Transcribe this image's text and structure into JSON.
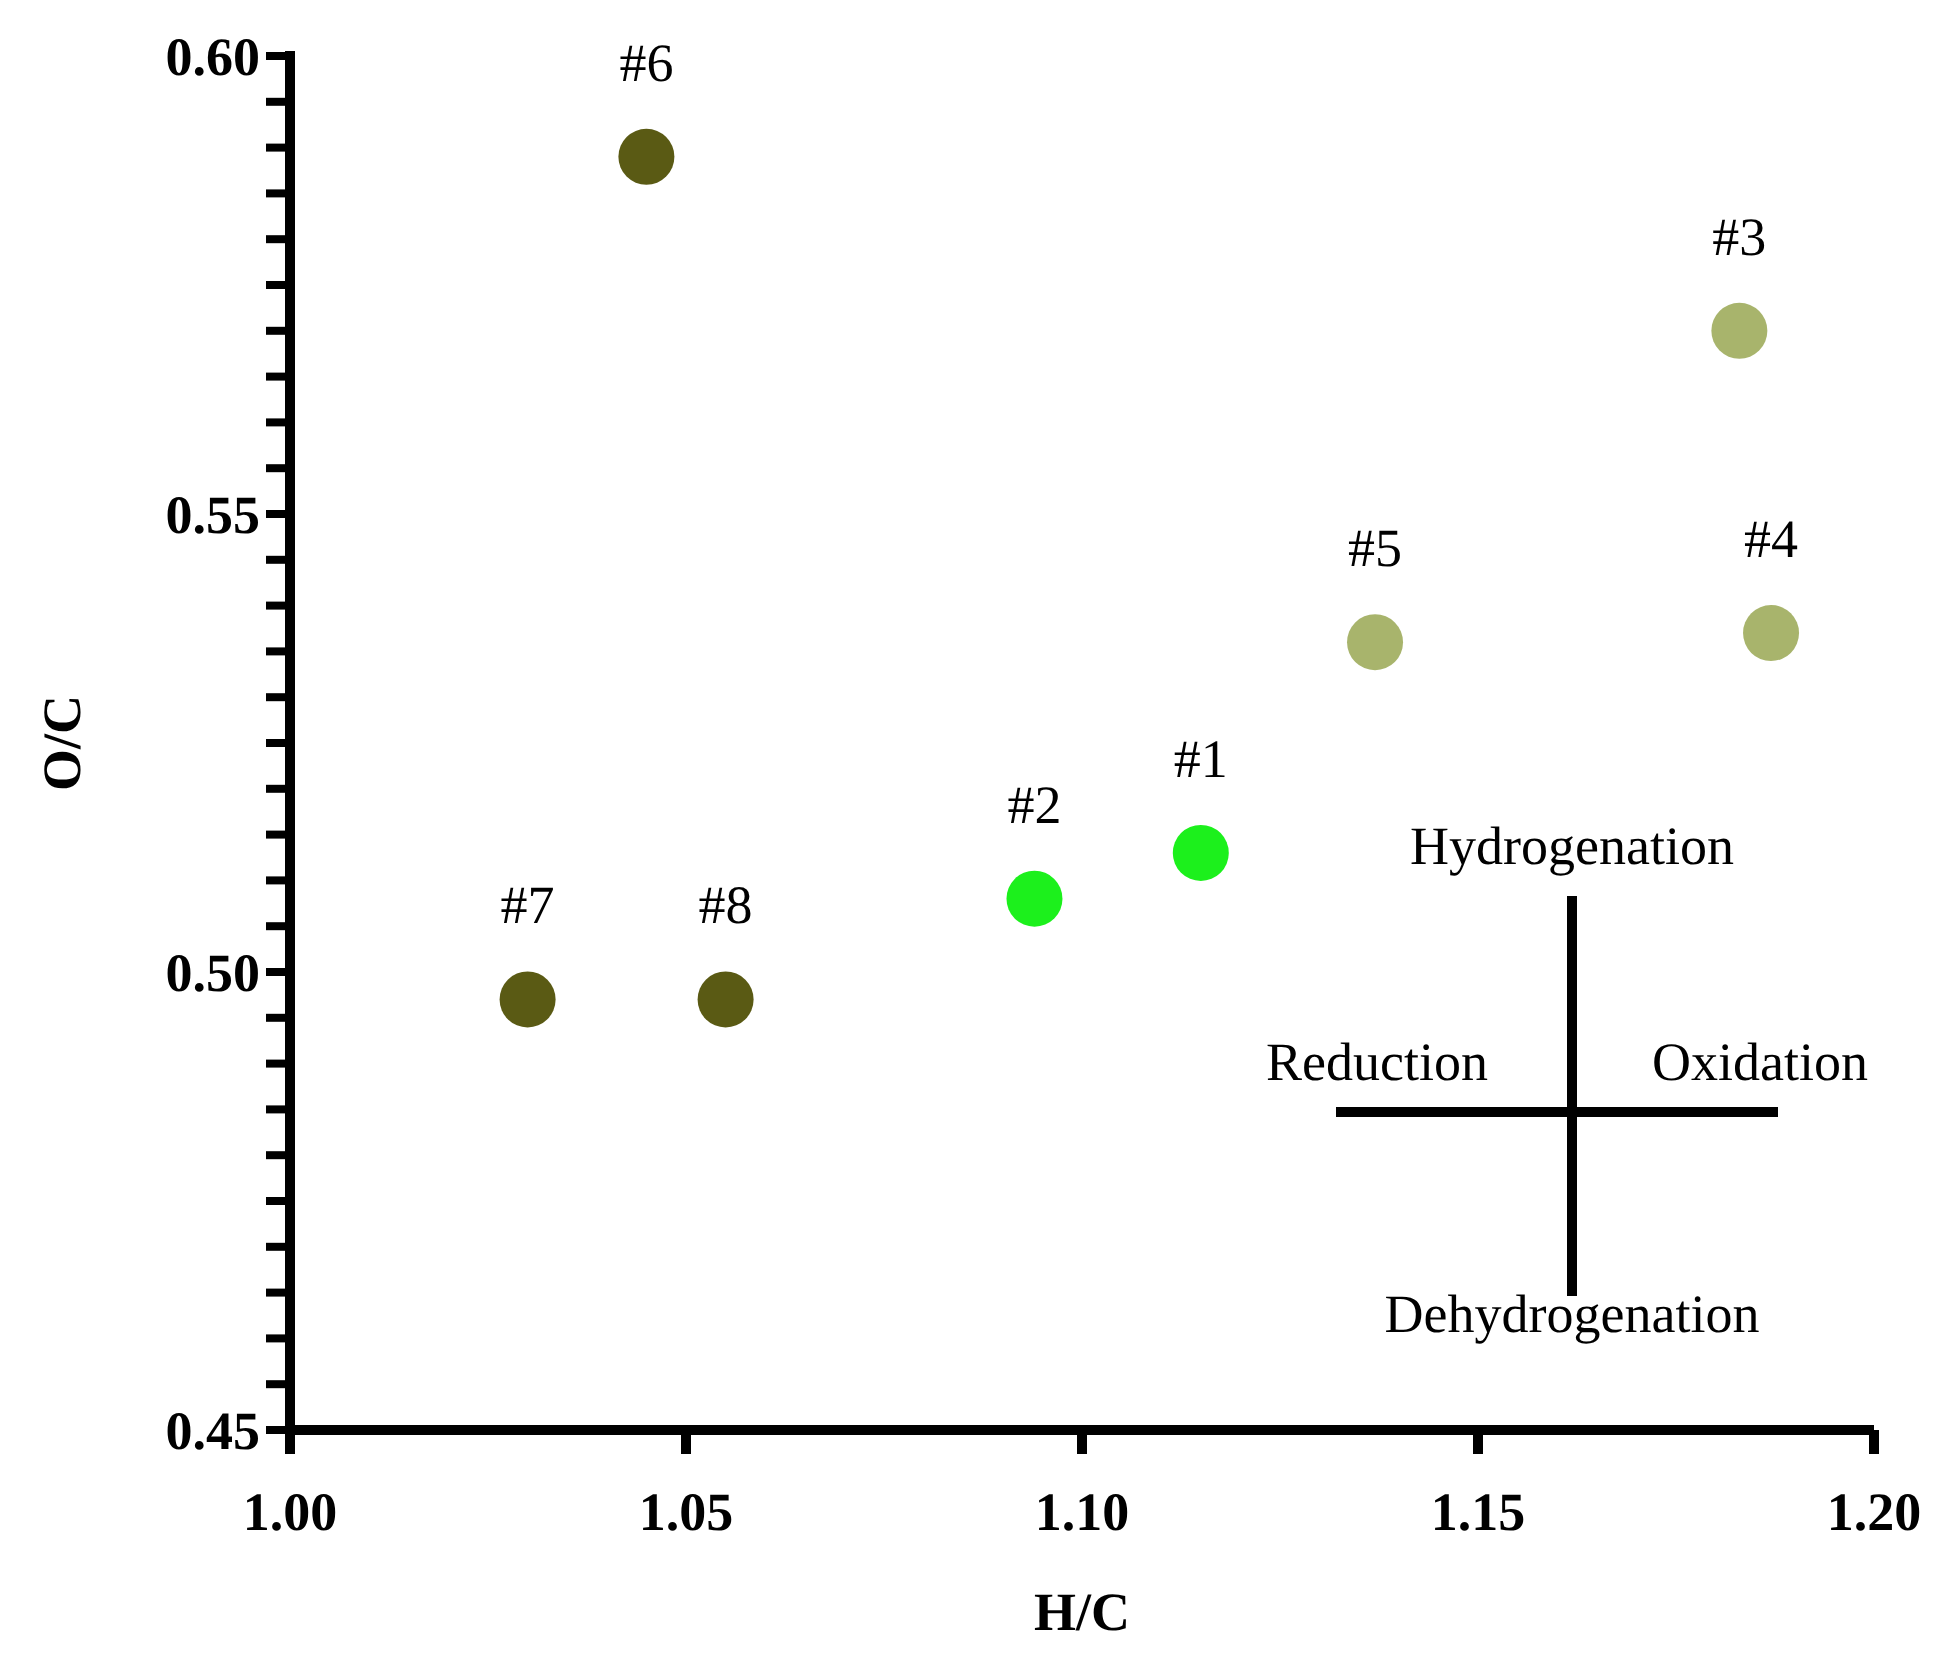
{
  "chart_data": {
    "type": "scatter",
    "xlabel": "H/C",
    "ylabel": "O/C",
    "x": [
      1.115,
      1.094,
      1.183,
      1.187,
      1.137,
      1.045,
      1.03,
      1.055
    ],
    "values": [
      0.513,
      0.508,
      0.57,
      0.537,
      0.536,
      0.589,
      0.497,
      0.497
    ],
    "colors": [
      "#1cf01c",
      "#1cf01c",
      "#a8b46c",
      "#a8b46c",
      "#a8b46c",
      "#5a5a14",
      "#5a5a14",
      "#5a5a14"
    ],
    "marker": "circle",
    "xlim": [
      1.0,
      1.2
    ],
    "xticks": [
      {
        "value": 1.0,
        "label": "1.00"
      },
      1.05,
      {
        "value": 1.1,
        "label": "1.10"
      },
      1.15,
      {
        "value": 1.2,
        "label": "1.20"
      }
    ],
    "ylim": [
      0.45,
      0.6
    ],
    "yticks": [
      0.45,
      {
        "value": 0.455,
        "label": null
      },
      {
        "value": 0.46,
        "label": null
      },
      {
        "value": 0.465,
        "label": null
      },
      {
        "value": 0.47,
        "label": null
      },
      {
        "value": 0.475,
        "label": null
      },
      {
        "value": 0.48,
        "label": null
      },
      {
        "value": 0.485,
        "label": null
      },
      {
        "value": 0.49,
        "label": null
      },
      {
        "value": 0.495,
        "label": null
      },
      {
        "value": 0.5,
        "label": "0.50"
      },
      {
        "value": 0.505,
        "label": null
      },
      {
        "value": 0.51,
        "label": null
      },
      {
        "value": 0.515,
        "label": null
      },
      {
        "value": 0.52,
        "label": null
      },
      {
        "value": 0.525,
        "label": null
      },
      {
        "value": 0.53,
        "label": null
      },
      {
        "value": 0.535,
        "label": null
      },
      {
        "value": 0.54,
        "label": null
      },
      {
        "value": 0.545,
        "label": null
      },
      0.55,
      {
        "value": 0.555,
        "label": null
      },
      {
        "value": 0.56,
        "label": null
      },
      {
        "value": 0.565,
        "label": null
      },
      {
        "value": 0.57,
        "label": null
      },
      {
        "value": 0.575,
        "label": null
      },
      {
        "value": 0.58,
        "label": null
      },
      {
        "value": 0.585,
        "label": null
      },
      {
        "value": 0.59,
        "label": null
      },
      {
        "value": 0.595,
        "label": null
      },
      {
        "value": 0.6,
        "label": "0.60"
      }
    ],
    "annotations": [
      {
        "text": "#1",
        "x": 1.115,
        "y": 0.513
      },
      {
        "text": "#2",
        "x": 1.094,
        "y": 0.508
      },
      {
        "text": "#3",
        "x": 1.183,
        "y": 0.57
      },
      {
        "text": "#4",
        "x": 1.187,
        "y": 0.537
      },
      {
        "text": "#5",
        "x": 1.137,
        "y": 0.536
      },
      {
        "text": "#6",
        "x": 1.045,
        "y": 0.589
      },
      {
        "text": "#7",
        "x": 1.03,
        "y": 0.497
      },
      {
        "text": "#8",
        "x": 1.055,
        "y": 0.497
      },
      "Hydrogenation",
      "Reduction",
      "Oxidation",
      "Dehydrogenation"
    ]
  }
}
